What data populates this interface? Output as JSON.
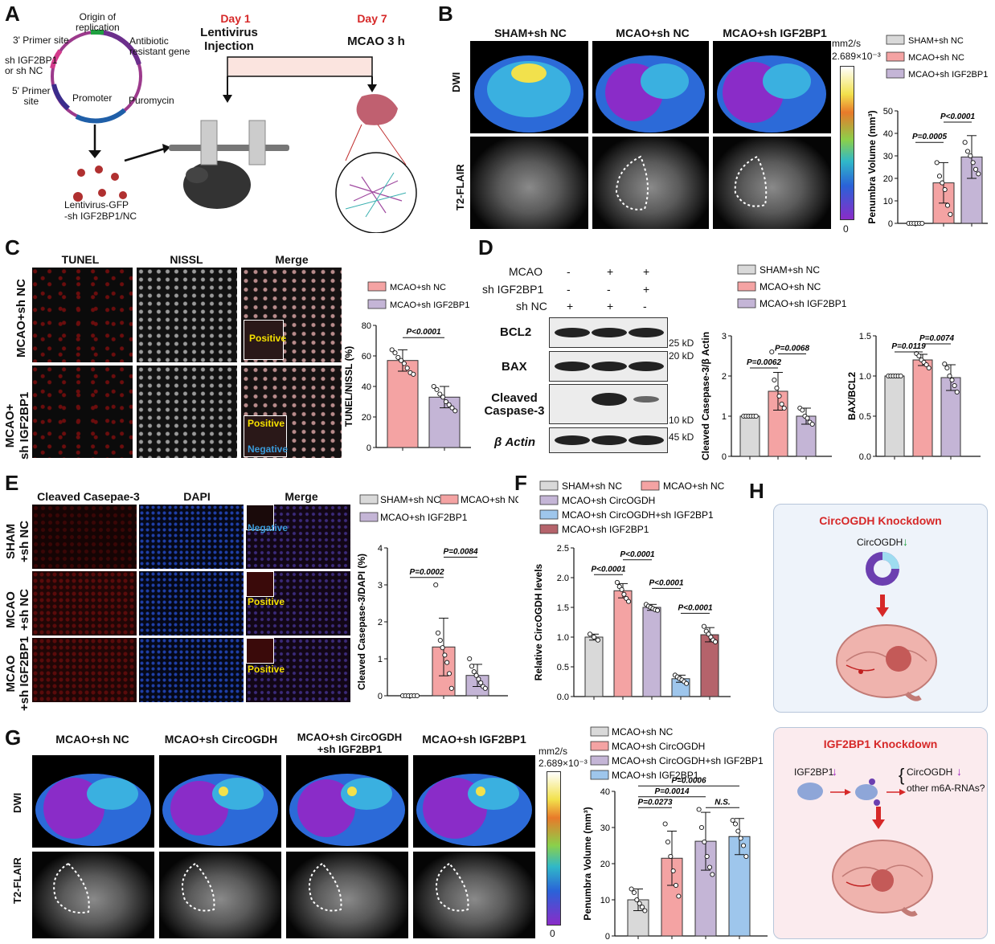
{
  "panels": {
    "A": {
      "label": "A",
      "plasmid": {
        "origin": "Origin of\nreplication",
        "primer3": "3' Primer site",
        "insert": "sh IGF2BP1\nor sh NC",
        "primer5": "5' Primer\nsite",
        "promoter": "Promoter",
        "antibiotic": "Antibiotic\nresistant gene",
        "puromycin": "Puromycin"
      },
      "virus_label": "Lentivirus-GFP\n-sh IGF2BP1/NC",
      "day1": "Day 1",
      "day1_desc": "Lentivirus\nInjection",
      "day7": "Day 7",
      "day7_desc": "MCAO 3 h"
    },
    "B": {
      "label": "B",
      "col_titles": [
        "SHAM+sh NC",
        "MCAO+sh NC",
        "MCAO+sh IGF2BP1"
      ],
      "row_titles": [
        "DWI",
        "T2-FLAIR"
      ],
      "scale_unit": "mm2/s",
      "scale_max": "2.689×10⁻³",
      "scale_min": "0",
      "legend": [
        "SHAM+sh NC",
        "MCAO+sh NC",
        "MCAO+sh IGF2BP1"
      ],
      "p_values": [
        "P=0.0005",
        "P<0.0001"
      ]
    },
    "C": {
      "label": "C",
      "col_titles": [
        "TUNEL",
        "NISSL",
        "Merge"
      ],
      "row_titles": [
        "MCAO+sh NC",
        "MCAO+\nsh IGF2BP1"
      ],
      "inset_labels": [
        "Positive",
        "Positive",
        "Negative"
      ],
      "legend": [
        "MCAO+sh NC",
        "MCAO+sh IGF2BP1"
      ],
      "p_values": [
        "P<0.0001"
      ]
    },
    "D": {
      "label": "D",
      "conditions": [
        {
          "name": "MCAO",
          "values": [
            "-",
            "+",
            "+"
          ]
        },
        {
          "name": "sh IGF2BP1",
          "values": [
            "-",
            "-",
            "+"
          ]
        },
        {
          "name": "sh NC",
          "values": [
            "+",
            "+",
            "-"
          ]
        }
      ],
      "blots": [
        "BCL2",
        "BAX",
        "Cleaved\nCaspase-3",
        "β Actin"
      ],
      "markers": [
        "25 kD",
        "20 kD",
        "10 kD",
        "45 kD"
      ],
      "legend": [
        "SHAM+sh NC",
        "MCAO+sh NC",
        "MCAO+sh IGF2BP1"
      ],
      "p_values_casp": [
        "P=0.0062",
        "P=0.0068"
      ],
      "p_values_bax": [
        "P=0.0119",
        "P=0.0074"
      ]
    },
    "E": {
      "label": "E",
      "col_titles": [
        "Cleaved Casepae-3",
        "DAPI",
        "Merge"
      ],
      "row_titles": [
        "SHAM\n+sh NC",
        "MCAO\n+sh NC",
        "MCAO\n+sh IGF2BP1"
      ],
      "inset_labels": [
        "Negative",
        "Positive",
        "Positive"
      ],
      "legend": [
        "SHAM+sh NC",
        "MCAO+sh NC",
        "MCAO+sh IGF2BP1"
      ],
      "p_values": [
        "P=0.0002",
        "P=0.0084"
      ]
    },
    "F": {
      "label": "F",
      "legend": [
        "SHAM+sh NC",
        "MCAO+sh NC",
        "MCAO+sh CircOGDH",
        "MCAO+sh CircOGDH+sh IGF2BP1",
        "MCAO+sh IGF2BP1"
      ],
      "p_values": [
        "P<0.0001",
        "P<0.0001",
        "P<0.0001",
        "P<0.0001"
      ]
    },
    "G": {
      "label": "G",
      "col_titles": [
        "MCAO+sh NC",
        "MCAO+sh CircOGDH",
        "MCAO+sh CircOGDH\n+sh IGF2BP1",
        "MCAO+sh IGF2BP1"
      ],
      "row_titles": [
        "DWI",
        "T2-FLAIR"
      ],
      "scale_unit": "mm2/s",
      "scale_max": "2.689×10⁻³",
      "scale_min": "0",
      "legend": [
        "MCAO+sh NC",
        "MCAO+sh CircOGDH",
        "MCAO+sh CircOGDH+sh IGF2BP1",
        "MCAO+sh IGF2BP1"
      ],
      "p_values": [
        "P=0.0006",
        "P=0.0014",
        "P=0.0273",
        "N.S."
      ]
    },
    "H": {
      "label": "H",
      "box1_title": "CircOGDH Knockdown",
      "box1_item": "CircOGDH",
      "box2_title": "IGF2BP1 Knockdown",
      "box2_left": "IGF2BP1",
      "box2_right1": "CircOGDH",
      "box2_right2": "other m6A-RNAs?"
    }
  },
  "colors": {
    "sham": "#d9d9d9",
    "mcao_nc": "#f4a3a3",
    "sh_igf": "#c4b5d6",
    "sh_circ_igf": "#9ec6ec",
    "sh_igf_F": "#b5636b",
    "accent_red": "#d62828"
  },
  "chart_data": [
    {
      "id": "B",
      "type": "bar",
      "categories": [
        "SHAM+sh NC",
        "MCAO+sh NC",
        "MCAO+sh IGF2BP1"
      ],
      "values": [
        0,
        18,
        29.5
      ],
      "errors": [
        0,
        9,
        9.5
      ],
      "points": [
        [
          0,
          0,
          0,
          0,
          0,
          0
        ],
        [
          27,
          21,
          18,
          15,
          8,
          4
        ],
        [
          36,
          32,
          30,
          27,
          24,
          22
        ]
      ],
      "ylabel": "Penumbra Volume (mm³)",
      "ylim": [
        0,
        50
      ],
      "yticks": [
        0,
        10,
        20,
        30,
        40,
        50
      ],
      "colors": [
        "#d9d9d9",
        "#f4a3a3",
        "#c4b5d6"
      ],
      "comparisons": [
        {
          "from": 0,
          "to": 1,
          "label": "P=0.0005"
        },
        {
          "from": 1,
          "to": 2,
          "label": "P<0.0001"
        }
      ]
    },
    {
      "id": "C",
      "type": "bar",
      "categories": [
        "MCAO+sh NC",
        "MCAO+sh IGF2BP1"
      ],
      "values": [
        57,
        33
      ],
      "errors": [
        7,
        7
      ],
      "points": [
        [
          64,
          62,
          59,
          57,
          55,
          52,
          49,
          48
        ],
        [
          40,
          38,
          35,
          33,
          30,
          28,
          26,
          24
        ]
      ],
      "ylabel": "TUNEL/NISSL (%)",
      "ylim": [
        0,
        80
      ],
      "yticks": [
        0,
        20,
        40,
        60,
        80
      ],
      "colors": [
        "#f4a3a3",
        "#c4b5d6"
      ],
      "comparisons": [
        {
          "from": 0,
          "to": 1,
          "label": "P<0.0001"
        }
      ]
    },
    {
      "id": "D1",
      "type": "bar",
      "categories": [
        "SHAM+sh NC",
        "MCAO+sh NC",
        "MCAO+sh IGF2BP1"
      ],
      "values": [
        1.0,
        1.62,
        1.0
      ],
      "errors": [
        0,
        0.47,
        0.2
      ],
      "points": [
        [
          1,
          1,
          1,
          1,
          1,
          1
        ],
        [
          2.6,
          1.9,
          1.7,
          1.5,
          1.3,
          1.2
        ],
        [
          1.2,
          1.15,
          1.0,
          0.95,
          0.85,
          0.8
        ]
      ],
      "ylabel": "Cleaved Casepase-3/β Actin",
      "ylim": [
        0,
        3
      ],
      "yticks": [
        0,
        1,
        2,
        3
      ],
      "colors": [
        "#d9d9d9",
        "#f4a3a3",
        "#c4b5d6"
      ],
      "comparisons": [
        {
          "from": 0,
          "to": 1,
          "label": "P=0.0062"
        },
        {
          "from": 1,
          "to": 2,
          "label": "P=0.0068"
        }
      ]
    },
    {
      "id": "D2",
      "type": "bar",
      "categories": [
        "SHAM+sh NC",
        "MCAO+sh NC",
        "MCAO+sh IGF2BP1"
      ],
      "values": [
        1.0,
        1.2,
        0.98
      ],
      "errors": [
        0,
        0.07,
        0.16
      ],
      "points": [
        [
          1,
          1,
          1,
          1,
          1,
          1
        ],
        [
          1.28,
          1.25,
          1.2,
          1.17,
          1.14,
          1.1
        ],
        [
          1.15,
          1.1,
          1.0,
          0.95,
          0.88,
          0.8
        ]
      ],
      "ylabel": "BAX/BCL2",
      "ylim": [
        0,
        1.5
      ],
      "yticks": [
        0.0,
        0.5,
        1.0,
        1.5
      ],
      "colors": [
        "#d9d9d9",
        "#f4a3a3",
        "#c4b5d6"
      ],
      "comparisons": [
        {
          "from": 0,
          "to": 1,
          "label": "P=0.0119"
        },
        {
          "from": 1,
          "to": 2,
          "label": "P=0.0074"
        }
      ]
    },
    {
      "id": "E",
      "type": "bar",
      "categories": [
        "SHAM+sh NC",
        "MCAO+sh NC",
        "MCAO+sh IGF2BP1"
      ],
      "values": [
        0,
        1.32,
        0.55
      ],
      "errors": [
        0,
        0.78,
        0.3
      ],
      "points": [
        [
          0,
          0,
          0,
          0,
          0,
          0
        ],
        [
          3,
          1.7,
          1.5,
          1.3,
          1.1,
          0.9,
          0.6,
          0.2
        ],
        [
          1.0,
          0.8,
          0.65,
          0.55,
          0.45,
          0.35,
          0.25,
          0.2
        ]
      ],
      "ylabel": "Cleaved Casepase-3/DAPI (%)",
      "ylim": [
        0,
        4
      ],
      "yticks": [
        0,
        1,
        2,
        3,
        4
      ],
      "colors": [
        "#d9d9d9",
        "#f4a3a3",
        "#c4b5d6"
      ],
      "comparisons": [
        {
          "from": 0,
          "to": 1,
          "label": "P=0.0002"
        },
        {
          "from": 1,
          "to": 2,
          "label": "P=0.0084"
        }
      ]
    },
    {
      "id": "F",
      "type": "bar",
      "categories": [
        "SHAM+sh NC",
        "MCAO+sh NC",
        "MCAO+sh CircOGDH",
        "MCAO+sh CircOGDH+sh IGF2BP1",
        "MCAO+sh IGF2BP1"
      ],
      "values": [
        1.0,
        1.78,
        1.5,
        0.3,
        1.04
      ],
      "errors": [
        0.05,
        0.12,
        0.05,
        0.06,
        0.12
      ],
      "points": [
        [
          1.05,
          1.0,
          0.95
        ],
        [
          1.92,
          1.85,
          1.8,
          1.72,
          1.65,
          1.6
        ],
        [
          1.55,
          1.52,
          1.5,
          1.48,
          1.46,
          1.45
        ],
        [
          0.36,
          0.33,
          0.3,
          0.28,
          0.25,
          0.22
        ],
        [
          1.18,
          1.1,
          1.05,
          1.0,
          0.95,
          0.92
        ]
      ],
      "ylabel": "Relative CircOGDH levels",
      "ylim": [
        0,
        2.5
      ],
      "yticks": [
        0.0,
        0.5,
        1.0,
        1.5,
        2.0,
        2.5
      ],
      "colors": [
        "#d9d9d9",
        "#f4a3a3",
        "#c4b5d6",
        "#9ec6ec",
        "#b5636b"
      ],
      "comparisons": [
        {
          "from": 0,
          "to": 1,
          "label": "P<0.0001"
        },
        {
          "from": 1,
          "to": 2,
          "label": "P<0.0001"
        },
        {
          "from": 2,
          "to": 3,
          "label": "P<0.0001"
        },
        {
          "from": 3,
          "to": 4,
          "label": "P<0.0001"
        }
      ]
    },
    {
      "id": "G",
      "type": "bar",
      "categories": [
        "MCAO+sh NC",
        "MCAO+sh CircOGDH",
        "MCAO+sh CircOGDH+sh IGF2BP1",
        "MCAO+sh IGF2BP1"
      ],
      "values": [
        10,
        21.5,
        26.2,
        27.5
      ],
      "errors": [
        3,
        7.5,
        8,
        5
      ],
      "points": [
        [
          13,
          12,
          10,
          9,
          8,
          7
        ],
        [
          31,
          26,
          22,
          18,
          14,
          11
        ],
        [
          35,
          30,
          26,
          22,
          19,
          17
        ],
        [
          32,
          31,
          29,
          27,
          25,
          22
        ]
      ],
      "ylabel": "Penumbra Volume (mm³)",
      "ylim": [
        0,
        40
      ],
      "yticks": [
        0,
        10,
        20,
        30,
        40
      ],
      "colors": [
        "#d9d9d9",
        "#f4a3a3",
        "#c4b5d6",
        "#9ec6ec"
      ],
      "comparisons": [
        {
          "from": 0,
          "to": 1,
          "label": "P=0.0273"
        },
        {
          "from": 0,
          "to": 2,
          "label": "P=0.0014"
        },
        {
          "from": 0,
          "to": 3,
          "label": "P=0.0006"
        },
        {
          "from": 2,
          "to": 3,
          "label": "N.S."
        }
      ]
    }
  ]
}
